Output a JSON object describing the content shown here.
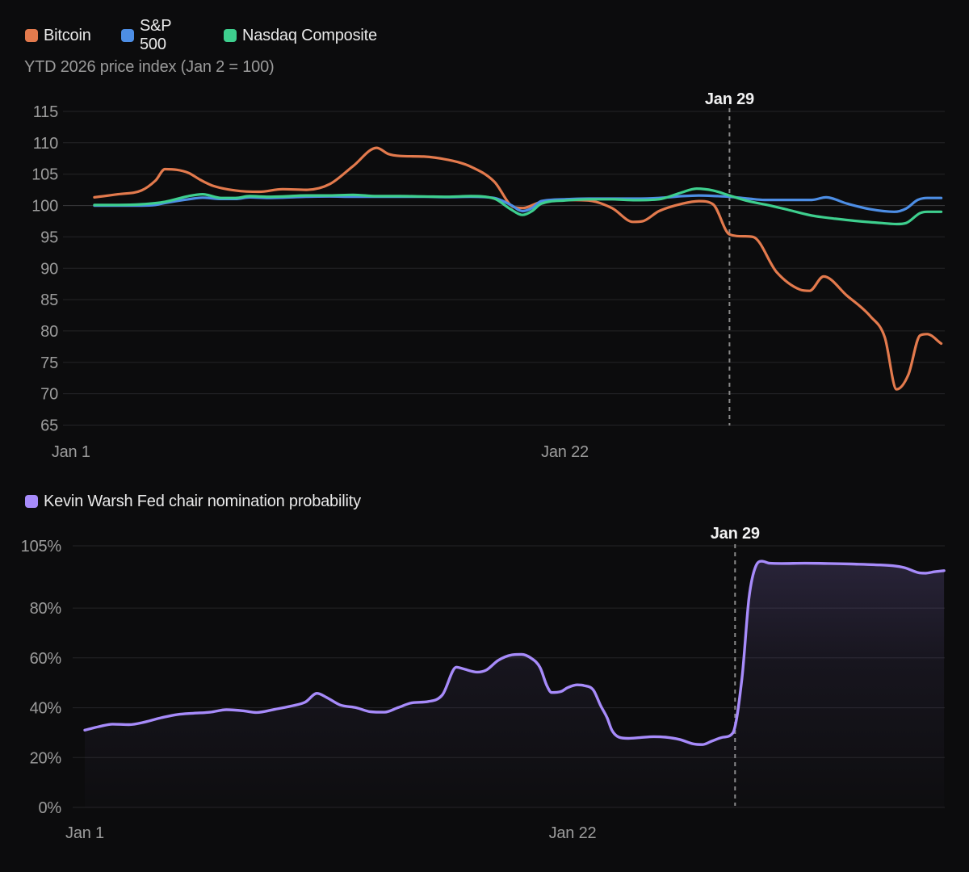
{
  "page": {
    "background": "#0c0c0d",
    "grid_color": "#242427",
    "baseline_grid_color": "#3a3a3c",
    "tick_label_color": "#9c9c9c",
    "annotation_color": "#f2f2f2",
    "dashed_line_color": "#8a8a8a"
  },
  "top_chart": {
    "subtitle": "YTD 2026 price index (Jan 2 = 100)",
    "legend": [
      {
        "label": "Bitcoin",
        "color": "#e37a4d"
      },
      {
        "label": "S&P 500",
        "color": "#4d8ee5"
      },
      {
        "label": "Nasdaq Composite",
        "color": "#3ecf8e"
      }
    ],
    "chart_data": {
      "type": "line",
      "title": "YTD 2026 price index (Jan 2 = 100)",
      "x_axis": {
        "day_index": "1 = Jan 1 2026",
        "ticks": [
          {
            "day": 1,
            "label": "Jan 1"
          },
          {
            "day": 22,
            "label": "Jan 22"
          }
        ]
      },
      "y_axis": {
        "ticks": [
          115,
          110,
          105,
          100,
          95,
          90,
          85,
          80,
          75,
          70,
          65
        ],
        "range": [
          65,
          115
        ],
        "baseline": 100
      },
      "annotation": {
        "day": 29,
        "label": "Jan 29",
        "style": "dashed-vertical"
      },
      "grid": true,
      "legend_position": "top-left",
      "series": [
        {
          "name": "Bitcoin",
          "color": "#e37a4d",
          "points": [
            [
              2,
              101.3
            ],
            [
              3,
              101.8
            ],
            [
              4,
              102.4
            ],
            [
              4.6,
              104.0
            ],
            [
              5,
              105.8
            ],
            [
              5.5,
              105.7
            ],
            [
              6,
              105.2
            ],
            [
              6.5,
              104.1
            ],
            [
              7,
              103.2
            ],
            [
              8,
              102.4
            ],
            [
              9,
              102.2
            ],
            [
              10,
              102.6
            ],
            [
              11,
              102.5
            ],
            [
              12,
              103.4
            ],
            [
              13,
              106.3
            ],
            [
              14,
              109.2
            ],
            [
              14.5,
              108.2
            ],
            [
              15,
              107.9
            ],
            [
              16,
              107.8
            ],
            [
              17,
              107.3
            ],
            [
              18,
              106.2
            ],
            [
              19,
              103.8
            ],
            [
              19.8,
              99.8
            ],
            [
              20.2,
              99.6
            ],
            [
              21,
              100.6
            ],
            [
              22,
              100.9
            ],
            [
              23,
              100.8
            ],
            [
              24,
              99.6
            ],
            [
              24.9,
              97.4
            ],
            [
              25.3,
              97.5
            ],
            [
              26,
              99.1
            ],
            [
              27,
              100.3
            ],
            [
              27.7,
              100.7
            ],
            [
              28.3,
              100.2
            ],
            [
              29,
              95.4
            ],
            [
              29.6,
              95.1
            ],
            [
              30,
              95.0
            ],
            [
              31,
              89.4
            ],
            [
              32,
              86.6
            ],
            [
              32.4,
              86.4
            ],
            [
              33,
              88.7
            ],
            [
              34,
              85.6
            ],
            [
              35,
              82.3
            ],
            [
              35.6,
              79.0
            ],
            [
              36.1,
              70.7
            ],
            [
              36.6,
              73.0
            ],
            [
              37.1,
              79.3
            ],
            [
              37.4,
              79.5
            ],
            [
              38,
              78.0
            ]
          ]
        },
        {
          "name": "S&P 500",
          "color": "#4d8ee5",
          "points": [
            [
              2,
              100
            ],
            [
              3,
              100
            ],
            [
              4,
              100
            ],
            [
              4.6,
              100.1
            ],
            [
              5,
              100.4
            ],
            [
              6,
              101.0
            ],
            [
              6.6,
              101.25
            ],
            [
              7.4,
              101.05
            ],
            [
              8,
              101.05
            ],
            [
              8.6,
              101.3
            ],
            [
              9.4,
              101.2
            ],
            [
              10,
              101.25
            ],
            [
              11,
              101.4
            ],
            [
              12,
              101.45
            ],
            [
              13,
              101.4
            ],
            [
              14,
              101.4
            ],
            [
              15,
              101.4
            ],
            [
              16,
              101.4
            ],
            [
              17,
              101.35
            ],
            [
              18,
              101.4
            ],
            [
              19,
              101.2
            ],
            [
              19.7,
              100.1
            ],
            [
              20.2,
              99.1
            ],
            [
              20.6,
              99.6
            ],
            [
              21,
              100.7
            ],
            [
              22,
              101.0
            ],
            [
              23,
              101.1
            ],
            [
              24,
              101.1
            ],
            [
              25,
              101.1
            ],
            [
              26,
              101.2
            ],
            [
              27,
              101.5
            ],
            [
              27.7,
              101.6
            ],
            [
              28.5,
              101.5
            ],
            [
              29,
              101.4
            ],
            [
              29.8,
              101.1
            ],
            [
              30.5,
              100.9
            ],
            [
              31.5,
              100.9
            ],
            [
              32.5,
              100.9
            ],
            [
              33.1,
              101.3
            ],
            [
              34,
              100.3
            ],
            [
              35,
              99.4
            ],
            [
              36,
              99.0
            ],
            [
              36.5,
              99.5
            ],
            [
              37,
              100.9
            ],
            [
              37.4,
              101.2
            ],
            [
              38,
              101.2
            ]
          ]
        },
        {
          "name": "Nasdaq Composite",
          "color": "#3ecf8e",
          "points": [
            [
              2,
              100.1
            ],
            [
              3,
              100.1
            ],
            [
              4,
              100.2
            ],
            [
              5,
              100.6
            ],
            [
              6,
              101.5
            ],
            [
              6.6,
              101.8
            ],
            [
              7.4,
              101.2
            ],
            [
              8,
              101.2
            ],
            [
              8.6,
              101.5
            ],
            [
              9.4,
              101.4
            ],
            [
              10,
              101.45
            ],
            [
              11,
              101.6
            ],
            [
              12,
              101.6
            ],
            [
              13,
              101.7
            ],
            [
              14,
              101.5
            ],
            [
              15,
              101.5
            ],
            [
              16,
              101.45
            ],
            [
              17,
              101.4
            ],
            [
              18,
              101.5
            ],
            [
              19,
              101.1
            ],
            [
              19.7,
              99.4
            ],
            [
              20.2,
              98.5
            ],
            [
              20.6,
              99.1
            ],
            [
              21,
              100.3
            ],
            [
              22,
              100.8
            ],
            [
              23,
              101.0
            ],
            [
              24,
              101.0
            ],
            [
              25,
              100.85
            ],
            [
              26,
              101.0
            ],
            [
              26.9,
              102.0
            ],
            [
              27.6,
              102.7
            ],
            [
              28.3,
              102.4
            ],
            [
              29,
              101.6
            ],
            [
              29.8,
              100.7
            ],
            [
              30.6,
              100.1
            ],
            [
              31.5,
              99.3
            ],
            [
              32.5,
              98.4
            ],
            [
              33.5,
              97.9
            ],
            [
              34.5,
              97.5
            ],
            [
              35.5,
              97.2
            ],
            [
              36.1,
              97.05
            ],
            [
              36.5,
              97.2
            ],
            [
              37.1,
              98.8
            ],
            [
              37.4,
              99.0
            ],
            [
              38,
              99.0
            ]
          ]
        }
      ]
    }
  },
  "bottom_chart": {
    "legend": [
      {
        "label": "Kevin Warsh Fed chair nomination probability",
        "color": "#a78bfa"
      }
    ],
    "chart_data": {
      "type": "area",
      "title": "Kevin Warsh Fed chair nomination probability",
      "x_axis": {
        "day_index": "1 = Jan 1 2026",
        "ticks": [
          {
            "day": 1,
            "label": "Jan 1"
          },
          {
            "day": 22,
            "label": "Jan 22"
          }
        ]
      },
      "y_axis": {
        "ticks": [
          {
            "value": 105,
            "label": "105%"
          },
          {
            "value": 80,
            "label": "80%"
          },
          {
            "value": 60,
            "label": "60%"
          },
          {
            "value": 40,
            "label": "40%"
          },
          {
            "value": 20,
            "label": "20%"
          },
          {
            "value": 0,
            "label": "0%"
          }
        ],
        "range": [
          0,
          105
        ],
        "unit": "percent"
      },
      "annotation": {
        "day": 29,
        "label": "Jan 29",
        "style": "dashed-vertical"
      },
      "grid": true,
      "legend_position": "top-left",
      "series": [
        {
          "name": "Kevin Warsh Fed chair nomination probability",
          "color": "#a78bfa",
          "fill": true,
          "points": [
            [
              1,
              31.0
            ],
            [
              1.6,
              32.4
            ],
            [
              2.2,
              33.4
            ],
            [
              2.9,
              33.2
            ],
            [
              3.6,
              34.3
            ],
            [
              4.3,
              36.0
            ],
            [
              5,
              37.3
            ],
            [
              5.7,
              37.8
            ],
            [
              6.4,
              38.2
            ],
            [
              7.1,
              39.2
            ],
            [
              7.8,
              38.8
            ],
            [
              8.4,
              38.1
            ],
            [
              9.2,
              39.4
            ],
            [
              9.9,
              40.7
            ],
            [
              10.5,
              42.3
            ],
            [
              11,
              45.8
            ],
            [
              11.4,
              44.2
            ],
            [
              12,
              41.1
            ],
            [
              12.7,
              40.0
            ],
            [
              13.3,
              38.4
            ],
            [
              13.9,
              38.2
            ],
            [
              14.5,
              40.1
            ],
            [
              15.1,
              42.0
            ],
            [
              15.8,
              42.5
            ],
            [
              16.4,
              45.2
            ],
            [
              17,
              56.3
            ],
            [
              17.3,
              55.6
            ],
            [
              17.9,
              54.3
            ],
            [
              18.3,
              55.2
            ],
            [
              18.8,
              59.0
            ],
            [
              19.4,
              61.2
            ],
            [
              19.8,
              61.4
            ],
            [
              20.2,
              60.0
            ],
            [
              20.6,
              56.2
            ],
            [
              20.9,
              48.8
            ],
            [
              21.1,
              46.1
            ],
            [
              21.5,
              46.5
            ],
            [
              21.8,
              48.1
            ],
            [
              22.2,
              49.2
            ],
            [
              22.5,
              48.9
            ],
            [
              22.9,
              47.1
            ],
            [
              23.2,
              41.1
            ],
            [
              23.5,
              35.8
            ],
            [
              23.7,
              30.9
            ],
            [
              24,
              28.2
            ],
            [
              24.4,
              27.7
            ],
            [
              24.9,
              28.0
            ],
            [
              25.5,
              28.4
            ],
            [
              26,
              28.2
            ],
            [
              26.6,
              27.3
            ],
            [
              27.2,
              25.5
            ],
            [
              27.6,
              25.2
            ],
            [
              28,
              26.6
            ],
            [
              28.5,
              28.2
            ],
            [
              28.9,
              29.8
            ],
            [
              29.3,
              52
            ],
            [
              29.6,
              84
            ],
            [
              29.9,
              97
            ],
            [
              30.15,
              98.8
            ],
            [
              30.5,
              98.0
            ],
            [
              31,
              97.9
            ],
            [
              32,
              98.0
            ],
            [
              33,
              97.9
            ],
            [
              34,
              97.7
            ],
            [
              35,
              97.4
            ],
            [
              35.8,
              97.0
            ],
            [
              36.3,
              96.2
            ],
            [
              36.9,
              94.2
            ],
            [
              37.2,
              94.0
            ],
            [
              37.6,
              94.6
            ],
            [
              38,
              95.0
            ]
          ]
        }
      ]
    }
  }
}
